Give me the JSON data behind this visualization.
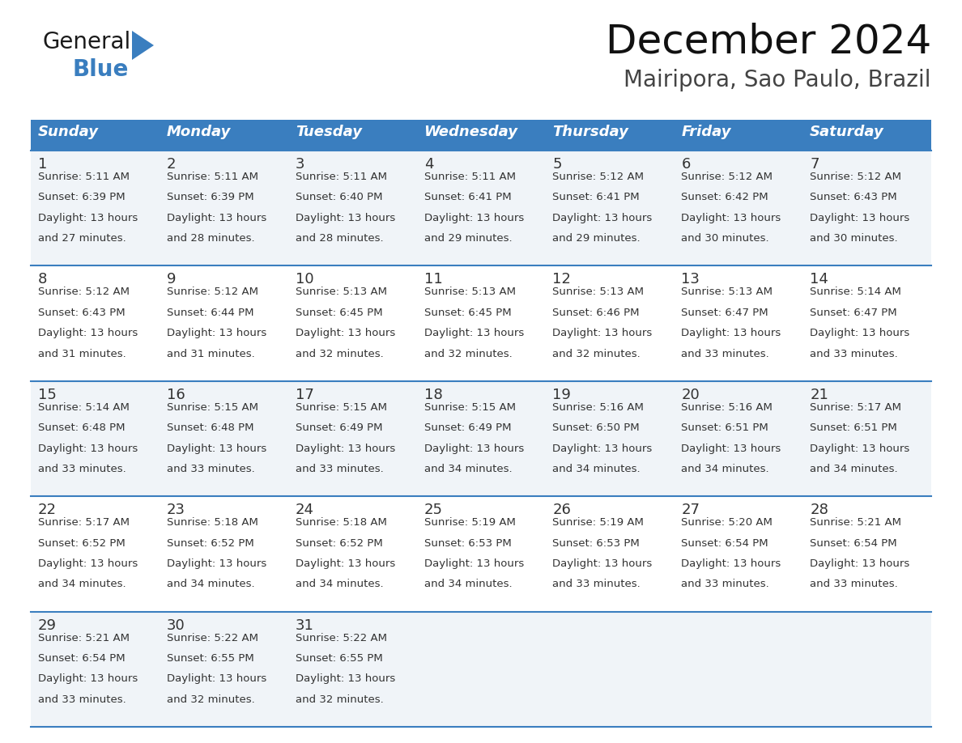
{
  "title": "December 2024",
  "subtitle": "Mairipora, Sao Paulo, Brazil",
  "header_color": "#3a7ebf",
  "header_text_color": "#ffffff",
  "cell_bg_even": "#f0f4f8",
  "cell_bg_odd": "#ffffff",
  "border_color": "#3a7ebf",
  "text_color": "#333333",
  "days_of_week": [
    "Sunday",
    "Monday",
    "Tuesday",
    "Wednesday",
    "Thursday",
    "Friday",
    "Saturday"
  ],
  "calendar_data": [
    [
      {
        "day": 1,
        "sunrise": "5:11 AM",
        "sunset": "6:39 PM",
        "daylight_hours": 13,
        "daylight_minutes": 27
      },
      {
        "day": 2,
        "sunrise": "5:11 AM",
        "sunset": "6:39 PM",
        "daylight_hours": 13,
        "daylight_minutes": 28
      },
      {
        "day": 3,
        "sunrise": "5:11 AM",
        "sunset": "6:40 PM",
        "daylight_hours": 13,
        "daylight_minutes": 28
      },
      {
        "day": 4,
        "sunrise": "5:11 AM",
        "sunset": "6:41 PM",
        "daylight_hours": 13,
        "daylight_minutes": 29
      },
      {
        "day": 5,
        "sunrise": "5:12 AM",
        "sunset": "6:41 PM",
        "daylight_hours": 13,
        "daylight_minutes": 29
      },
      {
        "day": 6,
        "sunrise": "5:12 AM",
        "sunset": "6:42 PM",
        "daylight_hours": 13,
        "daylight_minutes": 30
      },
      {
        "day": 7,
        "sunrise": "5:12 AM",
        "sunset": "6:43 PM",
        "daylight_hours": 13,
        "daylight_minutes": 30
      }
    ],
    [
      {
        "day": 8,
        "sunrise": "5:12 AM",
        "sunset": "6:43 PM",
        "daylight_hours": 13,
        "daylight_minutes": 31
      },
      {
        "day": 9,
        "sunrise": "5:12 AM",
        "sunset": "6:44 PM",
        "daylight_hours": 13,
        "daylight_minutes": 31
      },
      {
        "day": 10,
        "sunrise": "5:13 AM",
        "sunset": "6:45 PM",
        "daylight_hours": 13,
        "daylight_minutes": 32
      },
      {
        "day": 11,
        "sunrise": "5:13 AM",
        "sunset": "6:45 PM",
        "daylight_hours": 13,
        "daylight_minutes": 32
      },
      {
        "day": 12,
        "sunrise": "5:13 AM",
        "sunset": "6:46 PM",
        "daylight_hours": 13,
        "daylight_minutes": 32
      },
      {
        "day": 13,
        "sunrise": "5:13 AM",
        "sunset": "6:47 PM",
        "daylight_hours": 13,
        "daylight_minutes": 33
      },
      {
        "day": 14,
        "sunrise": "5:14 AM",
        "sunset": "6:47 PM",
        "daylight_hours": 13,
        "daylight_minutes": 33
      }
    ],
    [
      {
        "day": 15,
        "sunrise": "5:14 AM",
        "sunset": "6:48 PM",
        "daylight_hours": 13,
        "daylight_minutes": 33
      },
      {
        "day": 16,
        "sunrise": "5:15 AM",
        "sunset": "6:48 PM",
        "daylight_hours": 13,
        "daylight_minutes": 33
      },
      {
        "day": 17,
        "sunrise": "5:15 AM",
        "sunset": "6:49 PM",
        "daylight_hours": 13,
        "daylight_minutes": 33
      },
      {
        "day": 18,
        "sunrise": "5:15 AM",
        "sunset": "6:49 PM",
        "daylight_hours": 13,
        "daylight_minutes": 34
      },
      {
        "day": 19,
        "sunrise": "5:16 AM",
        "sunset": "6:50 PM",
        "daylight_hours": 13,
        "daylight_minutes": 34
      },
      {
        "day": 20,
        "sunrise": "5:16 AM",
        "sunset": "6:51 PM",
        "daylight_hours": 13,
        "daylight_minutes": 34
      },
      {
        "day": 21,
        "sunrise": "5:17 AM",
        "sunset": "6:51 PM",
        "daylight_hours": 13,
        "daylight_minutes": 34
      }
    ],
    [
      {
        "day": 22,
        "sunrise": "5:17 AM",
        "sunset": "6:52 PM",
        "daylight_hours": 13,
        "daylight_minutes": 34
      },
      {
        "day": 23,
        "sunrise": "5:18 AM",
        "sunset": "6:52 PM",
        "daylight_hours": 13,
        "daylight_minutes": 34
      },
      {
        "day": 24,
        "sunrise": "5:18 AM",
        "sunset": "6:52 PM",
        "daylight_hours": 13,
        "daylight_minutes": 34
      },
      {
        "day": 25,
        "sunrise": "5:19 AM",
        "sunset": "6:53 PM",
        "daylight_hours": 13,
        "daylight_minutes": 34
      },
      {
        "day": 26,
        "sunrise": "5:19 AM",
        "sunset": "6:53 PM",
        "daylight_hours": 13,
        "daylight_minutes": 33
      },
      {
        "day": 27,
        "sunrise": "5:20 AM",
        "sunset": "6:54 PM",
        "daylight_hours": 13,
        "daylight_minutes": 33
      },
      {
        "day": 28,
        "sunrise": "5:21 AM",
        "sunset": "6:54 PM",
        "daylight_hours": 13,
        "daylight_minutes": 33
      }
    ],
    [
      {
        "day": 29,
        "sunrise": "5:21 AM",
        "sunset": "6:54 PM",
        "daylight_hours": 13,
        "daylight_minutes": 33
      },
      {
        "day": 30,
        "sunrise": "5:22 AM",
        "sunset": "6:55 PM",
        "daylight_hours": 13,
        "daylight_minutes": 32
      },
      {
        "day": 31,
        "sunrise": "5:22 AM",
        "sunset": "6:55 PM",
        "daylight_hours": 13,
        "daylight_minutes": 32
      },
      null,
      null,
      null,
      null
    ]
  ],
  "logo_text_general": "General",
  "logo_text_blue": "Blue",
  "logo_triangle_color": "#3a7ebf",
  "fig_width": 11.88,
  "fig_height": 9.18,
  "dpi": 100
}
